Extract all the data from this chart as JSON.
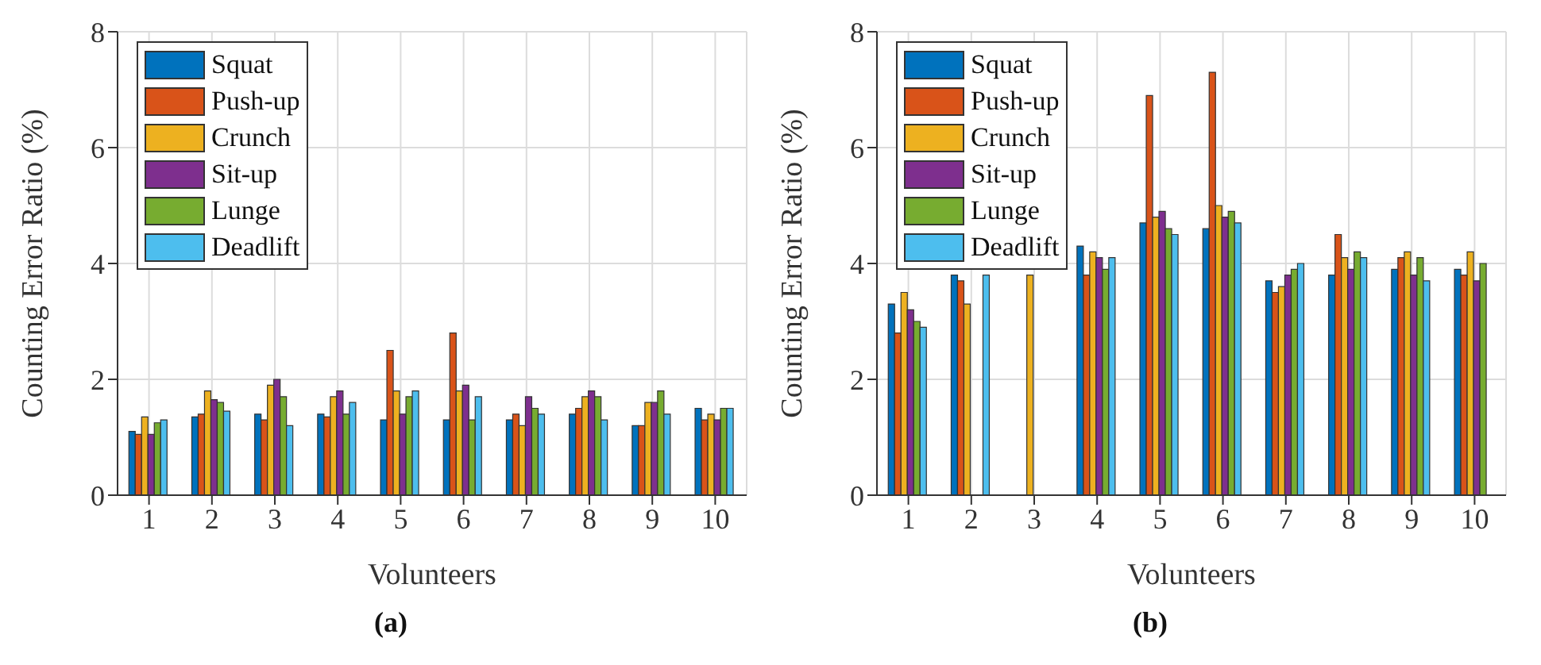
{
  "chart_data": [
    {
      "type": "bar",
      "title": "(a)",
      "xlabel": "Volunteers",
      "ylabel": "Counting Error Ratio (%)",
      "categories": [
        "1",
        "2",
        "3",
        "4",
        "5",
        "6",
        "7",
        "8",
        "9",
        "10"
      ],
      "ylim": [
        0,
        8
      ],
      "yticks": [
        0,
        2,
        4,
        6,
        8
      ],
      "grid": true,
      "legend": "top left",
      "series": [
        {
          "name": "Squat",
          "color": "#0072bd",
          "values": [
            1.1,
            1.35,
            1.4,
            1.4,
            1.3,
            1.3,
            1.3,
            1.4,
            1.2,
            1.5
          ]
        },
        {
          "name": "Push-up",
          "color": "#d95319",
          "values": [
            1.05,
            1.4,
            1.3,
            1.35,
            2.5,
            2.8,
            1.4,
            1.5,
            1.2,
            1.3
          ]
        },
        {
          "name": "Crunch",
          "color": "#edb120",
          "values": [
            1.35,
            1.8,
            1.9,
            1.7,
            1.8,
            1.8,
            1.2,
            1.7,
            1.6,
            1.4
          ]
        },
        {
          "name": "Sit-up",
          "color": "#7e2f8e",
          "values": [
            1.05,
            1.65,
            2.0,
            1.8,
            1.4,
            1.9,
            1.7,
            1.8,
            1.6,
            1.3
          ]
        },
        {
          "name": "Lunge",
          "color": "#77ac30",
          "values": [
            1.25,
            1.6,
            1.7,
            1.4,
            1.7,
            1.3,
            1.5,
            1.7,
            1.8,
            1.5
          ]
        },
        {
          "name": "Deadlift",
          "color": "#4dbeee",
          "values": [
            1.3,
            1.45,
            1.2,
            1.6,
            1.8,
            1.7,
            1.4,
            1.3,
            1.4,
            1.5
          ]
        }
      ]
    },
    {
      "type": "bar",
      "title": "(b)",
      "xlabel": "Volunteers",
      "ylabel": "Counting Error Ratio (%)",
      "categories": [
        "1",
        "2",
        "3",
        "4",
        "5",
        "6",
        "7",
        "8",
        "9",
        "10"
      ],
      "ylim": [
        0,
        8
      ],
      "yticks": [
        0,
        2,
        4,
        6,
        8
      ],
      "grid": true,
      "legend": "top left",
      "series": [
        {
          "name": "Squat",
          "color": "#0072bd",
          "values": [
            3.3,
            3.8,
            null,
            4.3,
            4.7,
            4.6,
            3.7,
            3.8,
            3.9,
            3.9
          ]
        },
        {
          "name": "Push-up",
          "color": "#d95319",
          "values": [
            2.8,
            3.7,
            null,
            3.8,
            6.9,
            7.3,
            3.5,
            4.5,
            4.1,
            3.8
          ]
        },
        {
          "name": "Crunch",
          "color": "#edb120",
          "values": [
            3.5,
            3.3,
            3.8,
            4.2,
            4.8,
            5.0,
            3.6,
            4.1,
            4.2,
            4.2
          ]
        },
        {
          "name": "Sit-up",
          "color": "#7e2f8e",
          "values": [
            3.2,
            null,
            null,
            4.1,
            4.9,
            4.8,
            3.8,
            3.9,
            3.8,
            3.7
          ]
        },
        {
          "name": "Lunge",
          "color": "#77ac30",
          "values": [
            3.0,
            null,
            null,
            3.9,
            4.6,
            4.9,
            3.9,
            4.2,
            4.1,
            4.0
          ]
        },
        {
          "name": "Deadlift",
          "color": "#4dbeee",
          "values": [
            2.9,
            3.8,
            null,
            4.1,
            4.5,
            4.7,
            4.0,
            4.1,
            3.7,
            null
          ]
        }
      ]
    }
  ]
}
